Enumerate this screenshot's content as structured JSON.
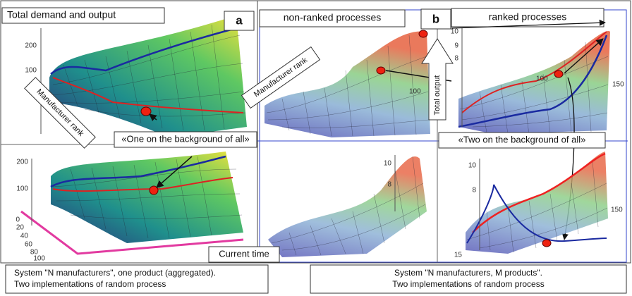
{
  "labels": {
    "a": "a",
    "b": "b"
  },
  "captions": {
    "total_demand": "Total demand and output",
    "non_ranked": "non-ranked processes",
    "ranked": "ranked processes",
    "one_on_bg": "«One on the background of all»",
    "two_on_bg": "«Two on the background of all»",
    "current_time": "Current time",
    "manufacturer_rank_left": "Manufacturer rank",
    "manufacturer_rank_mid": "Manufacturer rank",
    "total_output": "Total output"
  },
  "footer": {
    "left": [
      "System \"N manufacturers\", one product (aggregated).",
      "Two implementations of random process"
    ],
    "right": [
      "System \"N manufacturers, M products\".",
      "Two implementations of random process"
    ]
  },
  "ticks": {
    "top_left_y": [
      "200",
      "100"
    ],
    "bottom_left_y": [
      "200",
      "100"
    ],
    "bottom_left_rank": [
      "0",
      "20",
      "40",
      "60",
      "80",
      "100"
    ],
    "top_mid_x": [
      "100"
    ],
    "top_right_y": [
      "10",
      "9",
      "8"
    ],
    "top_right_x": [
      "150",
      "100"
    ],
    "bottom_mid_y": [
      "10",
      "8"
    ],
    "bottom_right_y": [
      "10",
      "8"
    ],
    "bottom_right_x": [
      "150",
      "15"
    ]
  }
}
